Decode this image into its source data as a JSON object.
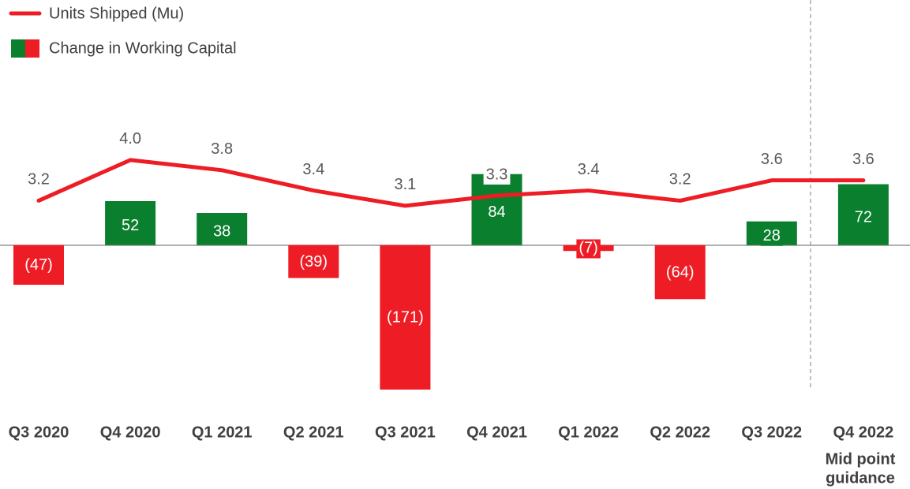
{
  "chart_data": {
    "type": "bar_line",
    "categories": [
      "Q3 2020",
      "Q4 2020",
      "Q1 2021",
      "Q2 2021",
      "Q3 2021",
      "Q4 2021",
      "Q1 2022",
      "Q2 2022",
      "Q3 2022",
      "Q4 2022"
    ],
    "annotation_lines": [
      "Mid point",
      "guidance"
    ],
    "series": [
      {
        "name": "Change in Working Capital",
        "type": "bar",
        "positive_color": "#0a7f2e",
        "negative_color": "#ee1c25",
        "values": [
          -47,
          52,
          38,
          -39,
          -171,
          84,
          -7,
          -64,
          28,
          72
        ],
        "value_labels": [
          "(47)",
          "52",
          "38",
          "(39)",
          "(171)",
          "84",
          "(7)",
          "(64)",
          "28",
          "72"
        ]
      },
      {
        "name": "Units Shipped (Mu)",
        "type": "line",
        "axis": "y2",
        "color": "#ee1c25",
        "values": [
          3.2,
          4.0,
          3.8,
          3.4,
          3.1,
          3.3,
          3.4,
          3.2,
          3.6,
          3.6
        ],
        "value_labels": [
          "3.2",
          "4.0",
          "3.8",
          "3.4",
          "3.1",
          "3.3",
          "3.4",
          "3.2",
          "3.6",
          "3.6"
        ]
      }
    ],
    "ylim": [
      -200,
      290
    ],
    "y2lim": [
      -1,
      7.15
    ]
  }
}
